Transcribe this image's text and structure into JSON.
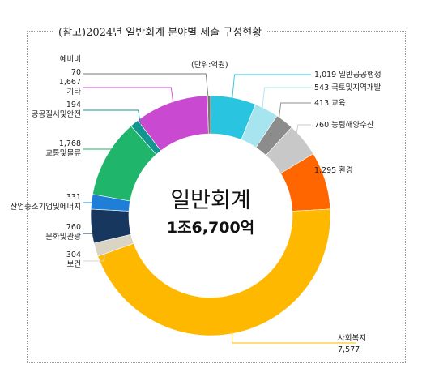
{
  "title": "(참고)2024년 일반회계 분야별 세출 구성현황",
  "chart_data": {
    "type": "pie",
    "unit_label": "(단위:억원)",
    "center_title": "일반회계",
    "center_value": "1조6,700억",
    "colors": {
      "일반공공행정": "#29c4e0",
      "국토및지역개발": "#a6e4ef",
      "교육": "#8c8c8c",
      "농림해양수산": "#c8c8c8",
      "환경": "#ff6600",
      "사회복지": "#ffb800",
      "보건": "#d9d4c4",
      "문화및관광": "#17375e",
      "산업중소기업및에너지": "#1f7fd8",
      "교통및물류": "#1fb56a",
      "공공질서및안전": "#11968f",
      "기타": "#c94ad1",
      "예비비": "#777777"
    },
    "slices": [
      {
        "name": "일반공공행정",
        "value": 1019,
        "value_label": "1,019"
      },
      {
        "name": "국토및지역개발",
        "value": 543,
        "value_label": "543"
      },
      {
        "name": "교육",
        "value": 413,
        "value_label": "413"
      },
      {
        "name": "농림해양수산",
        "value": 760,
        "value_label": "760"
      },
      {
        "name": "환경",
        "value": 1295,
        "value_label": "1,295"
      },
      {
        "name": "사회복지",
        "value": 7577,
        "value_label": "7,577"
      },
      {
        "name": "보건",
        "value": 304,
        "value_label": "304"
      },
      {
        "name": "문화및관광",
        "value": 760,
        "value_label": "760"
      },
      {
        "name": "산업중소기업및에너지",
        "value": 331,
        "value_label": "331"
      },
      {
        "name": "교통및물류",
        "value": 1768,
        "value_label": "1,768"
      },
      {
        "name": "공공질서및안전",
        "value": 194,
        "value_label": "194"
      },
      {
        "name": "기타",
        "value": 1667,
        "value_label": "1,667"
      },
      {
        "name": "예비비",
        "value": 70,
        "value_label": "70"
      }
    ]
  }
}
